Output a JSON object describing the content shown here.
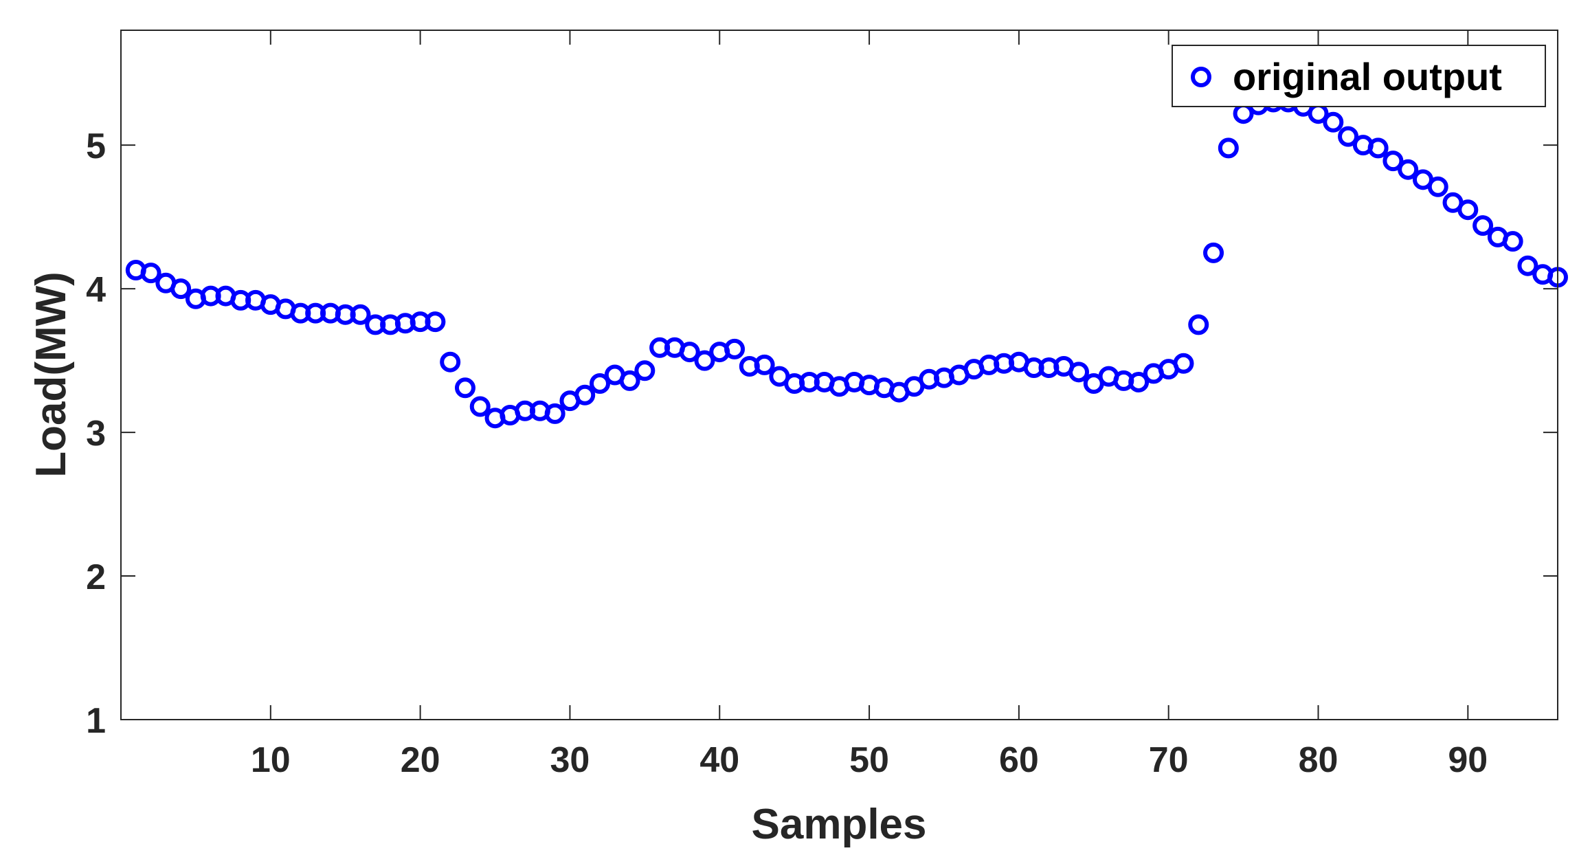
{
  "chart_data": {
    "type": "scatter",
    "xlabel": "Samples",
    "ylabel": "Load(MW)",
    "xlim": [
      0,
      96
    ],
    "ylim": [
      1,
      5.8
    ],
    "xticks": [
      10,
      20,
      30,
      40,
      50,
      60,
      70,
      80,
      90
    ],
    "yticks": [
      1,
      2,
      3,
      4,
      5
    ],
    "grid": false,
    "legend_position": "top-right",
    "marker": "circle-open",
    "series": [
      {
        "name": "original output",
        "color": "#0000FF",
        "x": [
          1,
          2,
          3,
          4,
          5,
          6,
          7,
          8,
          9,
          10,
          11,
          12,
          13,
          14,
          15,
          16,
          17,
          18,
          19,
          20,
          21,
          22,
          23,
          24,
          25,
          26,
          27,
          28,
          29,
          30,
          31,
          32,
          33,
          34,
          35,
          36,
          37,
          38,
          39,
          40,
          41,
          42,
          43,
          44,
          45,
          46,
          47,
          48,
          49,
          50,
          51,
          52,
          53,
          54,
          55,
          56,
          57,
          58,
          59,
          60,
          61,
          62,
          63,
          64,
          65,
          66,
          67,
          68,
          69,
          70,
          71,
          72,
          73,
          74,
          75,
          76,
          77,
          78,
          79,
          80,
          81,
          82,
          83,
          84,
          85,
          86,
          87,
          88,
          89,
          90,
          91,
          92,
          93,
          94,
          95,
          96
        ],
        "y": [
          4.13,
          4.11,
          4.04,
          4.0,
          3.93,
          3.95,
          3.95,
          3.92,
          3.92,
          3.89,
          3.86,
          3.83,
          3.83,
          3.83,
          3.82,
          3.82,
          3.75,
          3.75,
          3.76,
          3.77,
          3.77,
          3.49,
          3.31,
          3.18,
          3.1,
          3.12,
          3.15,
          3.15,
          3.13,
          3.22,
          3.26,
          3.34,
          3.4,
          3.36,
          3.43,
          3.59,
          3.59,
          3.56,
          3.5,
          3.56,
          3.58,
          3.46,
          3.47,
          3.39,
          3.34,
          3.35,
          3.35,
          3.32,
          3.35,
          3.33,
          3.31,
          3.28,
          3.32,
          3.37,
          3.38,
          3.4,
          3.44,
          3.47,
          3.48,
          3.49,
          3.45,
          3.45,
          3.46,
          3.42,
          3.34,
          3.39,
          3.36,
          3.35,
          3.41,
          3.44,
          3.48,
          3.75,
          4.25,
          4.98,
          5.22,
          5.28,
          5.3,
          5.3,
          5.27,
          5.22,
          5.16,
          5.06,
          5.0,
          4.98,
          4.89,
          4.83,
          4.76,
          4.71,
          4.6,
          4.55,
          4.44,
          4.36,
          4.33,
          4.16,
          4.1,
          4.08
        ]
      }
    ]
  }
}
